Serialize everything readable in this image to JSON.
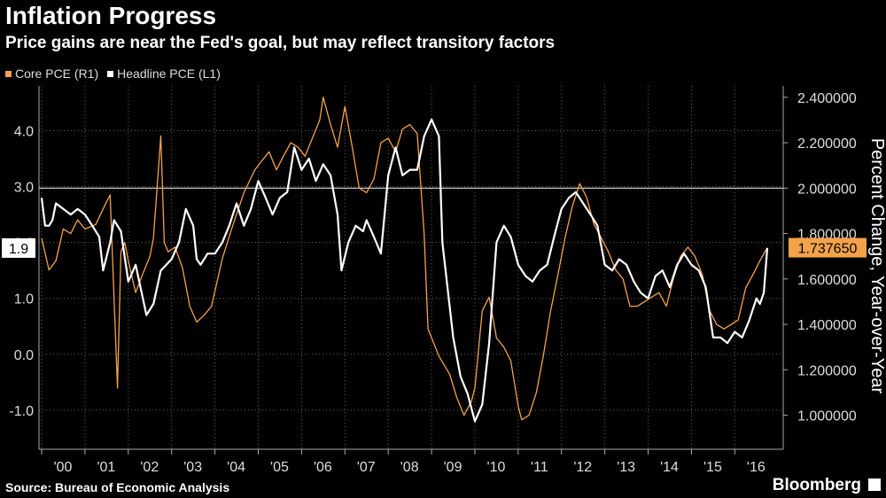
{
  "header": {
    "title": "Inflation Progress",
    "subtitle": "Price gains are near the Fed's goal, but may reflect transitory factors"
  },
  "footer": {
    "source": "Source: Bureau of Economic Analysis",
    "brand": "Bloomberg"
  },
  "colors": {
    "core": "#F4A24A",
    "headline": "#FFFFFF",
    "background": "#000000",
    "grid": "#666666"
  },
  "chart_data": {
    "type": "line",
    "title": "Inflation Progress",
    "subtitle": "Price gains are near the Fed's goal, but may reflect transitory factors",
    "right_axis_label": "Percent Change, Year-over-Year",
    "x_tick_labels": [
      "'00",
      "'01",
      "'02",
      "'03",
      "'04",
      "'05",
      "'06",
      "'07",
      "'08",
      "'09",
      "'10",
      "'11",
      "'12",
      "'13",
      "'14",
      "'15",
      "'16"
    ],
    "x_range": [
      2000.0,
      2016.75
    ],
    "left_axis": {
      "ticks": [
        4.0,
        3.0,
        2.0,
        1.0,
        0.0,
        -1.0
      ],
      "tick_labels": [
        "4.0",
        "3.0",
        "2.0",
        "1.0",
        "0.0",
        "-1.0"
      ],
      "range": [
        -1.7,
        4.8
      ]
    },
    "right_axis": {
      "ticks": [
        2.4,
        2.2,
        2.0,
        1.8,
        1.6,
        1.4,
        1.2,
        1.0
      ],
      "tick_labels": [
        "2.400000",
        "2.200000",
        "2.000000",
        "1.800000",
        "1.600000",
        "1.400000",
        "1.200000",
        "1.000000"
      ],
      "range": [
        0.85,
        2.45
      ]
    },
    "reference_line": {
      "axis": "right",
      "value": 2.0
    },
    "grid": "horizontal-dotted",
    "legend_position": "top-left",
    "series": [
      {
        "name": "Core PCE (R1)",
        "axis": "right",
        "color": "#F4A24A",
        "last_value_label": "1.737650",
        "points": [
          [
            2000.0,
            1.78
          ],
          [
            2000.17,
            1.64
          ],
          [
            2000.33,
            1.68
          ],
          [
            2000.5,
            1.82
          ],
          [
            2000.67,
            1.8
          ],
          [
            2000.83,
            1.86
          ],
          [
            2001.0,
            1.82
          ],
          [
            2001.25,
            1.84
          ],
          [
            2001.5,
            1.94
          ],
          [
            2001.58,
            1.97
          ],
          [
            2001.75,
            1.12
          ],
          [
            2001.83,
            1.72
          ],
          [
            2001.92,
            1.76
          ],
          [
            2002.0,
            1.68
          ],
          [
            2002.17,
            1.54
          ],
          [
            2002.33,
            1.62
          ],
          [
            2002.5,
            1.7
          ],
          [
            2002.58,
            1.78
          ],
          [
            2002.75,
            2.23
          ],
          [
            2002.83,
            1.76
          ],
          [
            2002.92,
            1.72
          ],
          [
            2003.08,
            1.74
          ],
          [
            2003.25,
            1.65
          ],
          [
            2003.42,
            1.48
          ],
          [
            2003.58,
            1.41
          ],
          [
            2003.75,
            1.44
          ],
          [
            2003.92,
            1.48
          ],
          [
            2004.17,
            1.69
          ],
          [
            2004.42,
            1.84
          ],
          [
            2004.67,
            1.98
          ],
          [
            2004.92,
            2.08
          ],
          [
            2005.08,
            2.12
          ],
          [
            2005.25,
            2.16
          ],
          [
            2005.42,
            2.08
          ],
          [
            2005.58,
            2.14
          ],
          [
            2005.75,
            2.2
          ],
          [
            2005.92,
            2.18
          ],
          [
            2006.08,
            2.14
          ],
          [
            2006.25,
            2.22
          ],
          [
            2006.42,
            2.3
          ],
          [
            2006.5,
            2.4
          ],
          [
            2006.67,
            2.28
          ],
          [
            2006.83,
            2.18
          ],
          [
            2007.0,
            2.36
          ],
          [
            2007.17,
            2.18
          ],
          [
            2007.33,
            2.0
          ],
          [
            2007.5,
            1.98
          ],
          [
            2007.67,
            2.04
          ],
          [
            2007.83,
            2.2
          ],
          [
            2008.0,
            2.22
          ],
          [
            2008.17,
            2.16
          ],
          [
            2008.33,
            2.26
          ],
          [
            2008.5,
            2.28
          ],
          [
            2008.67,
            2.24
          ],
          [
            2008.83,
            1.8
          ],
          [
            2008.92,
            1.38
          ],
          [
            2009.17,
            1.26
          ],
          [
            2009.42,
            1.18
          ],
          [
            2009.58,
            1.08
          ],
          [
            2009.75,
            1.0
          ],
          [
            2009.92,
            1.06
          ],
          [
            2010.0,
            1.12
          ],
          [
            2010.17,
            1.46
          ],
          [
            2010.33,
            1.52
          ],
          [
            2010.5,
            1.34
          ],
          [
            2010.67,
            1.3
          ],
          [
            2010.83,
            1.24
          ],
          [
            2011.0,
            1.04
          ],
          [
            2011.08,
            0.98
          ],
          [
            2011.25,
            1.0
          ],
          [
            2011.42,
            1.1
          ],
          [
            2011.58,
            1.26
          ],
          [
            2011.75,
            1.46
          ],
          [
            2011.92,
            1.62
          ],
          [
            2012.08,
            1.78
          ],
          [
            2012.25,
            1.92
          ],
          [
            2012.42,
            2.02
          ],
          [
            2012.58,
            1.96
          ],
          [
            2012.75,
            1.84
          ],
          [
            2012.92,
            1.78
          ],
          [
            2013.08,
            1.72
          ],
          [
            2013.25,
            1.64
          ],
          [
            2013.42,
            1.6
          ],
          [
            2013.58,
            1.48
          ],
          [
            2013.75,
            1.48
          ],
          [
            2013.92,
            1.5
          ],
          [
            2014.08,
            1.52
          ],
          [
            2014.25,
            1.54
          ],
          [
            2014.42,
            1.48
          ],
          [
            2014.58,
            1.6
          ],
          [
            2014.75,
            1.7
          ],
          [
            2014.92,
            1.74
          ],
          [
            2015.08,
            1.7
          ],
          [
            2015.25,
            1.62
          ],
          [
            2015.42,
            1.46
          ],
          [
            2015.58,
            1.4
          ],
          [
            2015.75,
            1.38
          ],
          [
            2015.92,
            1.4
          ],
          [
            2016.08,
            1.42
          ],
          [
            2016.25,
            1.56
          ],
          [
            2016.42,
            1.62
          ],
          [
            2016.58,
            1.68
          ],
          [
            2016.75,
            1.73765
          ]
        ]
      },
      {
        "name": "Headline PCE (L1)",
        "axis": "left",
        "color": "#FFFFFF",
        "last_value_label": "1.9",
        "points": [
          [
            2000.0,
            2.8
          ],
          [
            2000.08,
            2.3
          ],
          [
            2000.17,
            2.3
          ],
          [
            2000.25,
            2.4
          ],
          [
            2000.33,
            2.7
          ],
          [
            2000.5,
            2.6
          ],
          [
            2000.67,
            2.5
          ],
          [
            2000.83,
            2.6
          ],
          [
            2001.0,
            2.5
          ],
          [
            2001.17,
            2.3
          ],
          [
            2001.33,
            2.1
          ],
          [
            2001.42,
            1.5
          ],
          [
            2001.58,
            2.0
          ],
          [
            2001.67,
            2.4
          ],
          [
            2001.83,
            2.2
          ],
          [
            2002.0,
            1.3
          ],
          [
            2002.17,
            1.6
          ],
          [
            2002.42,
            0.7
          ],
          [
            2002.58,
            0.9
          ],
          [
            2002.75,
            1.5
          ],
          [
            2003.0,
            1.7
          ],
          [
            2003.17,
            2.0
          ],
          [
            2003.33,
            2.6
          ],
          [
            2003.5,
            2.3
          ],
          [
            2003.58,
            1.7
          ],
          [
            2003.67,
            1.6
          ],
          [
            2003.83,
            1.8
          ],
          [
            2004.0,
            1.8
          ],
          [
            2004.17,
            2.0
          ],
          [
            2004.33,
            2.3
          ],
          [
            2004.5,
            2.7
          ],
          [
            2004.67,
            2.3
          ],
          [
            2004.83,
            2.6
          ],
          [
            2005.0,
            3.1
          ],
          [
            2005.17,
            2.8
          ],
          [
            2005.33,
            2.5
          ],
          [
            2005.5,
            2.8
          ],
          [
            2005.67,
            2.9
          ],
          [
            2005.83,
            3.7
          ],
          [
            2006.0,
            3.3
          ],
          [
            2006.17,
            3.5
          ],
          [
            2006.33,
            3.1
          ],
          [
            2006.5,
            3.4
          ],
          [
            2006.67,
            3.2
          ],
          [
            2006.83,
            2.5
          ],
          [
            2006.92,
            1.5
          ],
          [
            2007.08,
            2.0
          ],
          [
            2007.25,
            2.3
          ],
          [
            2007.42,
            2.2
          ],
          [
            2007.5,
            2.4
          ],
          [
            2007.67,
            2.1
          ],
          [
            2007.83,
            1.8
          ],
          [
            2008.0,
            3.2
          ],
          [
            2008.17,
            3.7
          ],
          [
            2008.33,
            3.2
          ],
          [
            2008.5,
            3.3
          ],
          [
            2008.67,
            3.3
          ],
          [
            2008.83,
            3.9
          ],
          [
            2009.0,
            4.2
          ],
          [
            2009.17,
            3.9
          ],
          [
            2009.25,
            2.0
          ],
          [
            2009.5,
            0.3
          ],
          [
            2009.67,
            -0.4
          ],
          [
            2009.83,
            -0.7
          ],
          [
            2010.0,
            -1.2
          ],
          [
            2010.17,
            -0.9
          ],
          [
            2010.33,
            0.2
          ],
          [
            2010.5,
            2.0
          ],
          [
            2010.67,
            2.3
          ],
          [
            2010.83,
            2.1
          ],
          [
            2011.0,
            1.6
          ],
          [
            2011.17,
            1.4
          ],
          [
            2011.33,
            1.3
          ],
          [
            2011.5,
            1.5
          ],
          [
            2011.67,
            1.6
          ],
          [
            2011.83,
            2.1
          ],
          [
            2012.0,
            2.6
          ],
          [
            2012.17,
            2.8
          ],
          [
            2012.33,
            2.9
          ],
          [
            2012.5,
            2.7
          ],
          [
            2012.67,
            2.5
          ],
          [
            2012.83,
            2.3
          ],
          [
            2013.0,
            1.6
          ],
          [
            2013.17,
            1.5
          ],
          [
            2013.33,
            1.7
          ],
          [
            2013.5,
            1.6
          ],
          [
            2013.67,
            1.3
          ],
          [
            2013.83,
            1.1
          ],
          [
            2014.0,
            1.0
          ],
          [
            2014.17,
            1.4
          ],
          [
            2014.33,
            1.5
          ],
          [
            2014.5,
            1.2
          ],
          [
            2014.67,
            1.6
          ],
          [
            2014.83,
            1.8
          ],
          [
            2015.0,
            1.6
          ],
          [
            2015.17,
            1.5
          ],
          [
            2015.33,
            1.2
          ],
          [
            2015.5,
            0.3
          ],
          [
            2015.67,
            0.3
          ],
          [
            2015.83,
            0.2
          ],
          [
            2016.0,
            0.4
          ],
          [
            2016.17,
            0.3
          ],
          [
            2016.33,
            0.6
          ],
          [
            2016.5,
            1.0
          ],
          [
            2016.58,
            0.9
          ],
          [
            2016.67,
            1.1
          ],
          [
            2016.75,
            1.9
          ]
        ]
      }
    ]
  }
}
